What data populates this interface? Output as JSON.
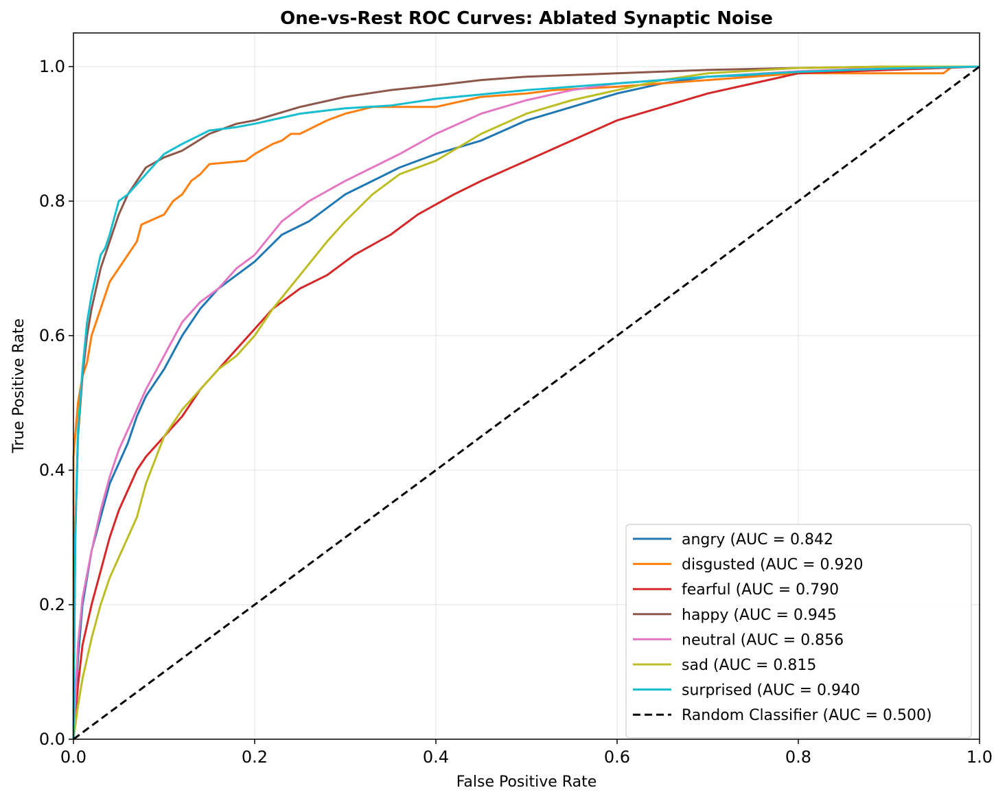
{
  "chart_data": {
    "type": "line",
    "title": "One-vs-Rest ROC Curves: Ablated Synaptic Noise",
    "xlabel": "False Positive Rate",
    "ylabel": "True Positive Rate",
    "xlim": [
      0.0,
      1.0
    ],
    "ylim": [
      0.0,
      1.05
    ],
    "xticks": [
      0.0,
      0.2,
      0.4,
      0.6,
      0.8,
      1.0
    ],
    "yticks": [
      0.0,
      0.2,
      0.4,
      0.6,
      0.8,
      1.0
    ],
    "xtick_labels": [
      "0.0",
      "0.2",
      "0.4",
      "0.6",
      "0.8",
      "1.0"
    ],
    "ytick_labels": [
      "0.0",
      "0.2",
      "0.4",
      "0.6",
      "0.8",
      "1.0"
    ],
    "grid": true,
    "legend_position": "lower-right",
    "series": [
      {
        "name": "angry (AUC = 0.842",
        "color": "#1f77b4",
        "x": [
          0,
          0.005,
          0.01,
          0.02,
          0.03,
          0.04,
          0.05,
          0.06,
          0.07,
          0.08,
          0.1,
          0.12,
          0.14,
          0.16,
          0.18,
          0.2,
          0.23,
          0.26,
          0.3,
          0.33,
          0.36,
          0.4,
          0.45,
          0.5,
          0.55,
          0.6,
          0.65,
          0.7,
          0.8,
          0.9,
          1.0
        ],
        "y": [
          0,
          0.12,
          0.2,
          0.28,
          0.33,
          0.38,
          0.41,
          0.44,
          0.48,
          0.51,
          0.55,
          0.6,
          0.64,
          0.67,
          0.69,
          0.71,
          0.75,
          0.77,
          0.81,
          0.83,
          0.85,
          0.87,
          0.89,
          0.92,
          0.94,
          0.96,
          0.975,
          0.985,
          0.99,
          0.997,
          1.0
        ]
      },
      {
        "name": "disgusted (AUC = 0.920",
        "color": "#ff7f0e",
        "x": [
          0,
          0.0,
          0.005,
          0.01,
          0.015,
          0.02,
          0.025,
          0.03,
          0.035,
          0.04,
          0.05,
          0.06,
          0.07,
          0.075,
          0.1,
          0.11,
          0.12,
          0.13,
          0.14,
          0.15,
          0.19,
          0.2,
          0.22,
          0.23,
          0.24,
          0.25,
          0.28,
          0.3,
          0.33,
          0.4,
          0.45,
          0.5,
          0.53,
          0.6,
          0.7,
          0.8,
          0.9,
          0.96,
          0.97,
          1.0
        ],
        "y": [
          0,
          0.42,
          0.5,
          0.54,
          0.56,
          0.6,
          0.62,
          0.64,
          0.66,
          0.68,
          0.7,
          0.72,
          0.74,
          0.765,
          0.78,
          0.8,
          0.81,
          0.83,
          0.84,
          0.855,
          0.86,
          0.87,
          0.885,
          0.89,
          0.9,
          0.9,
          0.92,
          0.93,
          0.94,
          0.94,
          0.955,
          0.96,
          0.965,
          0.97,
          0.98,
          0.99,
          0.99,
          0.99,
          1.0,
          1.0
        ]
      },
      {
        "name": "fearful (AUC = 0.790",
        "color": "#d62728",
        "x": [
          0,
          0.005,
          0.01,
          0.02,
          0.03,
          0.04,
          0.05,
          0.06,
          0.07,
          0.08,
          0.1,
          0.12,
          0.14,
          0.16,
          0.18,
          0.2,
          0.22,
          0.25,
          0.28,
          0.31,
          0.35,
          0.38,
          0.42,
          0.45,
          0.5,
          0.55,
          0.6,
          0.65,
          0.7,
          0.75,
          0.8,
          0.9,
          1.0
        ],
        "y": [
          0,
          0.08,
          0.14,
          0.2,
          0.25,
          0.3,
          0.34,
          0.37,
          0.4,
          0.42,
          0.45,
          0.48,
          0.52,
          0.55,
          0.58,
          0.61,
          0.64,
          0.67,
          0.69,
          0.72,
          0.75,
          0.78,
          0.81,
          0.83,
          0.86,
          0.89,
          0.92,
          0.94,
          0.96,
          0.975,
          0.99,
          0.995,
          1.0
        ]
      },
      {
        "name": "happy (AUC = 0.945",
        "color": "#8c564b",
        "x": [
          0,
          0.002,
          0.005,
          0.01,
          0.015,
          0.02,
          0.025,
          0.03,
          0.04,
          0.05,
          0.06,
          0.07,
          0.08,
          0.1,
          0.12,
          0.15,
          0.18,
          0.2,
          0.25,
          0.3,
          0.35,
          0.4,
          0.45,
          0.5,
          0.6,
          0.7,
          0.8,
          0.9,
          1.0
        ],
        "y": [
          0,
          0.3,
          0.45,
          0.54,
          0.6,
          0.64,
          0.67,
          0.7,
          0.74,
          0.78,
          0.81,
          0.83,
          0.85,
          0.865,
          0.875,
          0.9,
          0.915,
          0.92,
          0.94,
          0.955,
          0.965,
          0.972,
          0.98,
          0.985,
          0.99,
          0.995,
          0.998,
          1.0,
          1.0
        ]
      },
      {
        "name": "neutral (AUC = 0.856",
        "color": "#e377c2",
        "x": [
          0,
          0.005,
          0.01,
          0.02,
          0.03,
          0.04,
          0.05,
          0.06,
          0.07,
          0.08,
          0.1,
          0.12,
          0.14,
          0.16,
          0.18,
          0.2,
          0.23,
          0.26,
          0.3,
          0.33,
          0.36,
          0.4,
          0.45,
          0.5,
          0.55,
          0.6,
          0.65,
          0.7,
          0.8,
          0.9,
          1.0
        ],
        "y": [
          0,
          0.14,
          0.21,
          0.28,
          0.34,
          0.39,
          0.43,
          0.46,
          0.49,
          0.52,
          0.57,
          0.62,
          0.65,
          0.67,
          0.7,
          0.72,
          0.77,
          0.8,
          0.83,
          0.85,
          0.87,
          0.9,
          0.93,
          0.95,
          0.965,
          0.975,
          0.98,
          0.985,
          0.993,
          0.998,
          1.0
        ]
      },
      {
        "name": "sad (AUC = 0.815",
        "color": "#bcbd22",
        "x": [
          0,
          0.005,
          0.01,
          0.02,
          0.03,
          0.04,
          0.05,
          0.06,
          0.07,
          0.08,
          0.1,
          0.12,
          0.14,
          0.16,
          0.18,
          0.2,
          0.22,
          0.25,
          0.28,
          0.3,
          0.33,
          0.36,
          0.4,
          0.45,
          0.5,
          0.55,
          0.6,
          0.65,
          0.7,
          0.8,
          0.9,
          1.0
        ],
        "y": [
          0,
          0.05,
          0.09,
          0.15,
          0.2,
          0.24,
          0.27,
          0.3,
          0.33,
          0.38,
          0.45,
          0.49,
          0.52,
          0.55,
          0.57,
          0.6,
          0.64,
          0.69,
          0.74,
          0.77,
          0.81,
          0.84,
          0.86,
          0.9,
          0.93,
          0.95,
          0.965,
          0.98,
          0.99,
          0.998,
          1.0,
          1.0
        ]
      },
      {
        "name": "surprised (AUC = 0.940",
        "color": "#17becf",
        "x": [
          0,
          0.002,
          0.005,
          0.01,
          0.015,
          0.02,
          0.025,
          0.03,
          0.035,
          0.04,
          0.05,
          0.06,
          0.08,
          0.1,
          0.12,
          0.15,
          0.18,
          0.2,
          0.25,
          0.3,
          0.35,
          0.4,
          0.5,
          0.6,
          0.7,
          0.8,
          0.9,
          1.0
        ],
        "y": [
          0,
          0.3,
          0.46,
          0.55,
          0.62,
          0.66,
          0.69,
          0.72,
          0.73,
          0.75,
          0.8,
          0.81,
          0.84,
          0.87,
          0.885,
          0.905,
          0.91,
          0.915,
          0.93,
          0.938,
          0.942,
          0.952,
          0.965,
          0.975,
          0.985,
          0.992,
          0.997,
          1.0
        ]
      },
      {
        "name": "Random Classifier (AUC = 0.500)",
        "color": "#000000",
        "dashed": true,
        "x": [
          0.0,
          1.0
        ],
        "y": [
          0.0,
          1.0
        ]
      }
    ]
  }
}
